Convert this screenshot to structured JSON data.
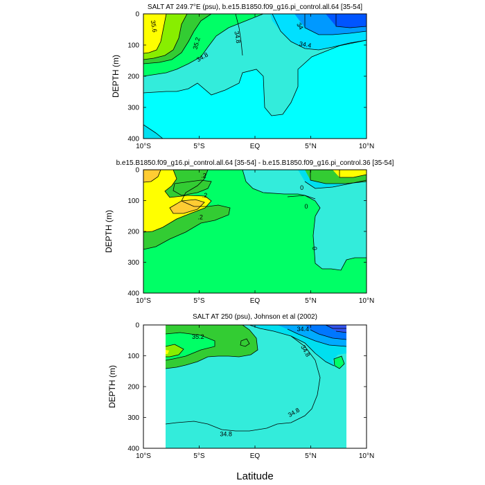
{
  "chart_data": [
    {
      "type": "contour",
      "title": "SALT AT 249.7°E (psu), b.e15.B1850.f09_g16.pi_control.all.64 [35-54]",
      "ylabel": "DEPTH (m)",
      "xlabel": "",
      "xlim": [
        -10,
        10
      ],
      "ylim": [
        0,
        400
      ],
      "x_ticks": [
        "10°S",
        "5°S",
        "EQ",
        "5°N",
        "10°N"
      ],
      "y_ticks": [
        "0",
        "100",
        "200",
        "300",
        "400"
      ],
      "contour_labels": [
        {
          "text": "35.6",
          "x": -9.1,
          "y": 40,
          "rotate": 80
        },
        {
          "text": "35.2",
          "x": -5.2,
          "y": 95,
          "rotate": -75
        },
        {
          "text": "34.8",
          "x": -4.7,
          "y": 140,
          "rotate": -30
        },
        {
          "text": "34.8",
          "x": -1.6,
          "y": 75,
          "rotate": 80
        },
        {
          "text": "34.4",
          "x": 4.5,
          "y": 100,
          "rotate": 10
        },
        {
          "text": "34",
          "x": 4.0,
          "y": 40,
          "rotate": 60
        }
      ],
      "contour_levels": [
        34.0,
        34.4,
        34.8,
        35.2,
        35.6
      ]
    },
    {
      "type": "contour",
      "title": "b.e15.B1850.f09_g16.pi_control.all.64 [35-54] - b.e15.B1850.f09_g16.pi_control.36 [35-54]",
      "ylabel": "DEPTH (m)",
      "xlabel": "",
      "xlim": [
        -10,
        10
      ],
      "ylim": [
        0,
        400
      ],
      "x_ticks": [
        "10°S",
        "5°S",
        "EQ",
        "5°N",
        "10°N"
      ],
      "y_ticks": [
        "0",
        "100",
        "200",
        "300",
        "400"
      ],
      "contour_labels": [
        {
          "text": ".2",
          "x": -4.6,
          "y": 20,
          "rotate": 0
        },
        {
          "text": ".2",
          "x": -4.5,
          "y": 85,
          "rotate": 0
        },
        {
          "text": ".2",
          "x": -4.9,
          "y": 155,
          "rotate": 0
        },
        {
          "text": "0",
          "x": 4.2,
          "y": 60,
          "rotate": 0
        },
        {
          "text": "0",
          "x": 4.6,
          "y": 120,
          "rotate": 0
        },
        {
          "text": "0",
          "x": 5.3,
          "y": 255,
          "rotate": 90
        }
      ],
      "contour_levels": [
        -0.2,
        0.0,
        0.2,
        0.4
      ]
    },
    {
      "type": "contour",
      "title": "SALT AT 250 (psu), Johnson et al (2002)",
      "ylabel": "DEPTH (m)",
      "xlabel": "Latitude",
      "xlim": [
        -10,
        10
      ],
      "ylim": [
        0,
        400
      ],
      "x_ticks": [
        "10°S",
        "5°S",
        "EQ",
        "5°N",
        "10°N"
      ],
      "y_ticks": [
        "0",
        "100",
        "200",
        "300",
        "400"
      ],
      "data_extent_x": [
        -8,
        8
      ],
      "contour_labels": [
        {
          "text": "35.2",
          "x": -5.1,
          "y": 40,
          "rotate": 0
        },
        {
          "text": "34.4",
          "x": 4.3,
          "y": 15,
          "rotate": 0
        },
        {
          "text": "34.8",
          "x": 4.5,
          "y": 85,
          "rotate": 60
        },
        {
          "text": "34.8",
          "x": 3.5,
          "y": 285,
          "rotate": -30
        },
        {
          "text": "34.8",
          "x": -2.6,
          "y": 355,
          "rotate": 0
        }
      ],
      "contour_levels": [
        34.0,
        34.4,
        34.8,
        35.2
      ]
    }
  ]
}
